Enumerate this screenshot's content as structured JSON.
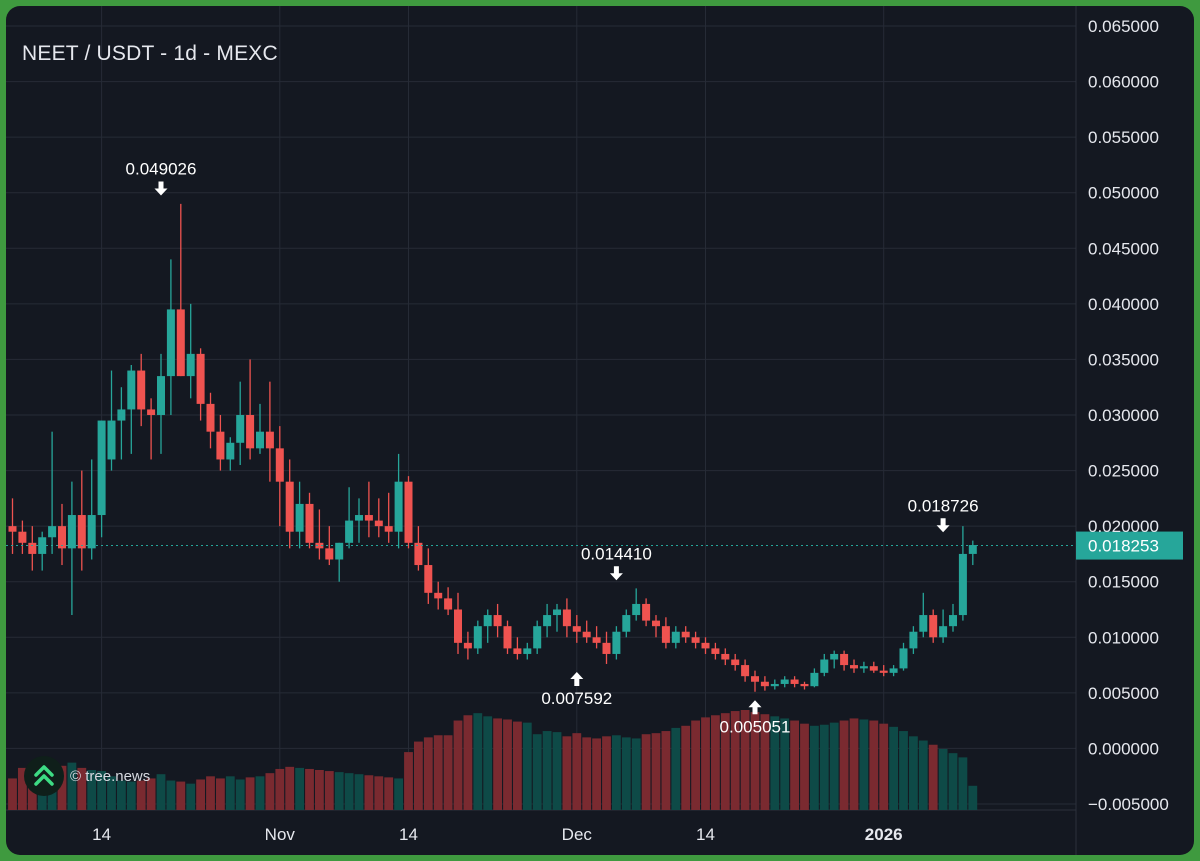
{
  "title": "NEET / USDT - 1d - MEXC",
  "watermark": "© tree.news",
  "colors": {
    "up": "#26a69a",
    "down": "#ef5350",
    "vol_up": "#0e4a47",
    "vol_down": "#7a2a30",
    "grid": "#262b36",
    "text": "#e6e8ee",
    "price_line": "#26a69a"
  },
  "chart_data": {
    "type": "candlestick",
    "ylim": [
      -0.005,
      0.065
    ],
    "yticks": [
      "0.065000",
      "0.060000",
      "0.055000",
      "0.050000",
      "0.045000",
      "0.040000",
      "0.035000",
      "0.030000",
      "0.025000",
      "0.020000",
      "0.015000",
      "0.010000",
      "0.005000",
      "0.000000",
      "−0.005000"
    ],
    "xticks": [
      {
        "label": "14",
        "index": 9
      },
      {
        "label": "Nov",
        "index": 27
      },
      {
        "label": "14",
        "index": 40
      },
      {
        "label": "Dec",
        "index": 57
      },
      {
        "label": "14",
        "index": 70
      },
      {
        "label": "2026",
        "index": 88,
        "bold": true
      }
    ],
    "current_price": "0.018253",
    "current_price_value": 0.018253,
    "annotations": [
      {
        "label": "0.049026",
        "index": 15,
        "value": 0.049026,
        "dir": "high"
      },
      {
        "label": "0.007592",
        "index": 57,
        "value": 0.007592,
        "dir": "low"
      },
      {
        "label": "0.014410",
        "index": 61,
        "value": 0.01441,
        "dir": "high"
      },
      {
        "label": "0.005051",
        "index": 75,
        "value": 0.005051,
        "dir": "low"
      },
      {
        "label": "0.018726",
        "index": 94,
        "value": 0.018726,
        "dir": "high"
      }
    ],
    "volume_max": 0.095,
    "candles": [
      [
        0.02,
        0.0225,
        0.0175,
        0.0195
      ],
      [
        0.0195,
        0.0205,
        0.0175,
        0.0185
      ],
      [
        0.0185,
        0.02,
        0.016,
        0.0175
      ],
      [
        0.0175,
        0.0195,
        0.016,
        0.019
      ],
      [
        0.019,
        0.0285,
        0.0175,
        0.02
      ],
      [
        0.02,
        0.022,
        0.0165,
        0.018
      ],
      [
        0.018,
        0.024,
        0.012,
        0.021
      ],
      [
        0.021,
        0.025,
        0.016,
        0.018
      ],
      [
        0.018,
        0.026,
        0.017,
        0.021
      ],
      [
        0.021,
        0.0295,
        0.019,
        0.0295
      ],
      [
        0.026,
        0.034,
        0.025,
        0.0295
      ],
      [
        0.0295,
        0.0325,
        0.026,
        0.0305
      ],
      [
        0.0305,
        0.0345,
        0.0265,
        0.034
      ],
      [
        0.034,
        0.0355,
        0.029,
        0.0305
      ],
      [
        0.0305,
        0.0315,
        0.026,
        0.03
      ],
      [
        0.03,
        0.0355,
        0.0265,
        0.0335
      ],
      [
        0.0335,
        0.044,
        0.03,
        0.0395
      ],
      [
        0.0395,
        0.049,
        0.0335,
        0.0335
      ],
      [
        0.0335,
        0.04,
        0.0315,
        0.0355
      ],
      [
        0.0355,
        0.036,
        0.0295,
        0.031
      ],
      [
        0.031,
        0.032,
        0.027,
        0.0285
      ],
      [
        0.0285,
        0.03,
        0.025,
        0.026
      ],
      [
        0.026,
        0.028,
        0.025,
        0.0275
      ],
      [
        0.0275,
        0.033,
        0.0255,
        0.03
      ],
      [
        0.03,
        0.035,
        0.026,
        0.027
      ],
      [
        0.027,
        0.031,
        0.0265,
        0.0285
      ],
      [
        0.0285,
        0.033,
        0.024,
        0.027
      ],
      [
        0.027,
        0.029,
        0.02,
        0.024
      ],
      [
        0.024,
        0.026,
        0.018,
        0.0195
      ],
      [
        0.0195,
        0.024,
        0.018,
        0.022
      ],
      [
        0.022,
        0.023,
        0.018,
        0.0185
      ],
      [
        0.0185,
        0.0215,
        0.017,
        0.018
      ],
      [
        0.018,
        0.02,
        0.0165,
        0.017
      ],
      [
        0.017,
        0.0185,
        0.015,
        0.0185
      ],
      [
        0.0185,
        0.0235,
        0.018,
        0.0205
      ],
      [
        0.0205,
        0.0225,
        0.0185,
        0.021
      ],
      [
        0.021,
        0.024,
        0.019,
        0.0205
      ],
      [
        0.0205,
        0.0225,
        0.019,
        0.02
      ],
      [
        0.02,
        0.023,
        0.0185,
        0.0195
      ],
      [
        0.0195,
        0.0265,
        0.018,
        0.024
      ],
      [
        0.024,
        0.0245,
        0.018,
        0.0185
      ],
      [
        0.0185,
        0.02,
        0.016,
        0.0165
      ],
      [
        0.0165,
        0.018,
        0.013,
        0.014
      ],
      [
        0.014,
        0.015,
        0.0125,
        0.0135
      ],
      [
        0.0135,
        0.0145,
        0.012,
        0.0125
      ],
      [
        0.0125,
        0.014,
        0.0085,
        0.0095
      ],
      [
        0.0095,
        0.0105,
        0.008,
        0.009
      ],
      [
        0.009,
        0.0115,
        0.0085,
        0.011
      ],
      [
        0.011,
        0.0125,
        0.0095,
        0.012
      ],
      [
        0.012,
        0.013,
        0.01,
        0.011
      ],
      [
        0.011,
        0.0115,
        0.0085,
        0.009
      ],
      [
        0.009,
        0.01,
        0.008,
        0.0085
      ],
      [
        0.0085,
        0.0095,
        0.008,
        0.009
      ],
      [
        0.009,
        0.0115,
        0.0085,
        0.011
      ],
      [
        0.011,
        0.013,
        0.01,
        0.012
      ],
      [
        0.012,
        0.013,
        0.0105,
        0.0125
      ],
      [
        0.0125,
        0.0135,
        0.01,
        0.011
      ],
      [
        0.011,
        0.012,
        0.0095,
        0.0105
      ],
      [
        0.0105,
        0.0115,
        0.0095,
        0.01
      ],
      [
        0.01,
        0.011,
        0.009,
        0.0095
      ],
      [
        0.0095,
        0.0105,
        0.0076,
        0.0085
      ],
      [
        0.0085,
        0.011,
        0.008,
        0.0105
      ],
      [
        0.0105,
        0.0125,
        0.01,
        0.012
      ],
      [
        0.012,
        0.0144,
        0.0115,
        0.013
      ],
      [
        0.013,
        0.0135,
        0.011,
        0.0115
      ],
      [
        0.0115,
        0.012,
        0.01,
        0.011
      ],
      [
        0.011,
        0.0118,
        0.009,
        0.0095
      ],
      [
        0.0095,
        0.011,
        0.009,
        0.0105
      ],
      [
        0.0105,
        0.011,
        0.0095,
        0.01
      ],
      [
        0.01,
        0.0105,
        0.009,
        0.0095
      ],
      [
        0.0095,
        0.01,
        0.0085,
        0.009
      ],
      [
        0.009,
        0.0095,
        0.008,
        0.0085
      ],
      [
        0.0085,
        0.009,
        0.0075,
        0.008
      ],
      [
        0.008,
        0.0085,
        0.007,
        0.0075
      ],
      [
        0.0075,
        0.008,
        0.006,
        0.0065
      ],
      [
        0.0065,
        0.007,
        0.0051,
        0.006
      ],
      [
        0.006,
        0.0065,
        0.0052,
        0.0056
      ],
      [
        0.0056,
        0.0062,
        0.0053,
        0.0058
      ],
      [
        0.0058,
        0.0065,
        0.0055,
        0.0062
      ],
      [
        0.0062,
        0.0065,
        0.0055,
        0.0058
      ],
      [
        0.0058,
        0.006,
        0.0053,
        0.0056
      ],
      [
        0.0056,
        0.0072,
        0.0055,
        0.0068
      ],
      [
        0.0068,
        0.0085,
        0.0065,
        0.008
      ],
      [
        0.008,
        0.0088,
        0.0072,
        0.0085
      ],
      [
        0.0085,
        0.0088,
        0.007,
        0.0075
      ],
      [
        0.0075,
        0.008,
        0.0068,
        0.0072
      ],
      [
        0.0072,
        0.0078,
        0.0068,
        0.0074
      ],
      [
        0.0074,
        0.0078,
        0.0068,
        0.007
      ],
      [
        0.007,
        0.0075,
        0.0065,
        0.0068
      ],
      [
        0.0068,
        0.0075,
        0.0065,
        0.0072
      ],
      [
        0.0072,
        0.0095,
        0.007,
        0.009
      ],
      [
        0.009,
        0.011,
        0.0085,
        0.0105
      ],
      [
        0.0105,
        0.014,
        0.01,
        0.012
      ],
      [
        0.012,
        0.0125,
        0.0095,
        0.01
      ],
      [
        0.01,
        0.0125,
        0.0095,
        0.011
      ],
      [
        0.011,
        0.013,
        0.0105,
        0.012
      ],
      [
        0.012,
        0.02,
        0.0115,
        0.0175
      ],
      [
        0.0175,
        0.0187,
        0.0165,
        0.0183
      ]
    ],
    "volume": [
      0.003,
      0.004,
      0.0035,
      0.0037,
      0.0038,
      0.0042,
      0.0045,
      0.004,
      0.0038,
      0.0037,
      0.0032,
      0.0028,
      0.0027,
      0.0028,
      0.003,
      0.0034,
      0.0028,
      0.0027,
      0.0025,
      0.0029,
      0.0032,
      0.003,
      0.0032,
      0.0029,
      0.0031,
      0.0032,
      0.0035,
      0.0039,
      0.0041,
      0.004,
      0.0039,
      0.0038,
      0.0037,
      0.0036,
      0.0035,
      0.0034,
      0.0033,
      0.0032,
      0.0031,
      0.003,
      0.0055,
      0.0065,
      0.0069,
      0.0071,
      0.0071,
      0.0085,
      0.009,
      0.0092,
      0.0089,
      0.0087,
      0.0086,
      0.0084,
      0.0083,
      0.0072,
      0.0075,
      0.0074,
      0.007,
      0.0073,
      0.0069,
      0.0068,
      0.007,
      0.0071,
      0.0069,
      0.0068,
      0.0072,
      0.0073,
      0.0075,
      0.0078,
      0.008,
      0.0085,
      0.0088,
      0.009,
      0.0092,
      0.0094,
      0.0095,
      0.0093,
      0.0091,
      0.0089,
      0.0087,
      0.0085,
      0.0082,
      0.008,
      0.0081,
      0.0083,
      0.0085,
      0.0087,
      0.0086,
      0.0085,
      0.0082,
      0.0079,
      0.0075,
      0.007,
      0.0066,
      0.0062,
      0.0058,
      0.0054,
      0.005,
      0.0023
    ]
  }
}
